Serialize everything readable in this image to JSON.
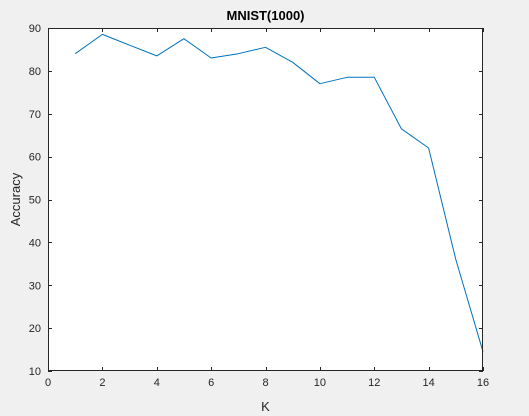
{
  "chart_data": {
    "type": "line",
    "title": "MNIST(1000)",
    "xlabel": "K",
    "ylabel": "Accuracy",
    "xlim": [
      0,
      16
    ],
    "ylim": [
      10,
      90
    ],
    "xticks": [
      0,
      2,
      4,
      6,
      8,
      10,
      12,
      14,
      16
    ],
    "yticks": [
      10,
      20,
      30,
      40,
      50,
      60,
      70,
      80,
      90
    ],
    "grid": false,
    "legend": "none",
    "series": [
      {
        "color": "#0072bd",
        "x": [
          1,
          2,
          3,
          4,
          5,
          6,
          7,
          8,
          9,
          10,
          11,
          12,
          13,
          14,
          15,
          16
        ],
        "y": [
          84,
          88.5,
          86,
          83.5,
          87.5,
          83,
          84,
          85.5,
          82,
          77,
          78.5,
          78.5,
          66.5,
          62,
          36,
          14.5
        ]
      }
    ],
    "colors": {
      "background": "#f0f0f0",
      "plot_area": "#ffffff",
      "axes": "#262626"
    }
  }
}
